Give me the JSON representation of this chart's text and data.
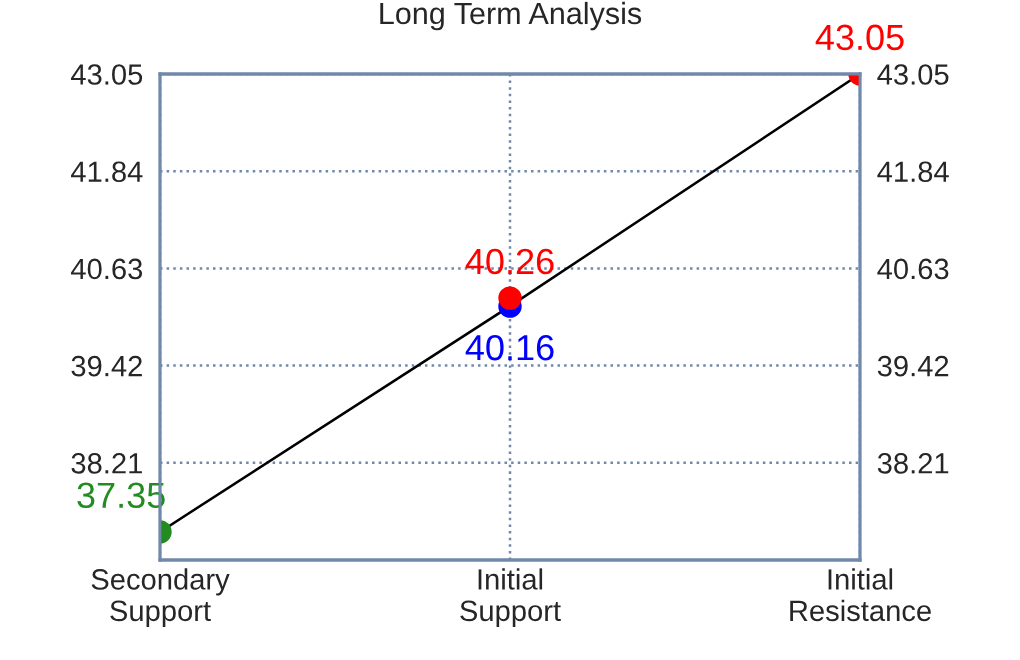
{
  "chart_data": {
    "type": "line",
    "title": "Long Term Analysis",
    "categories": [
      "Secondary\nSupport",
      "Initial\nSupport",
      "Initial\nResistance"
    ],
    "series": [
      {
        "color": "#000000",
        "values": [
          37.35,
          40.16,
          43.05
        ]
      },
      {
        "type": "scatter",
        "color": "#228b22",
        "values": [
          37.35,
          null,
          null
        ],
        "value_labels": [
          "37.35",
          null,
          null
        ],
        "marker": "circle"
      },
      {
        "type": "scatter",
        "color": "#0000ff",
        "values": [
          null,
          40.16,
          null
        ],
        "value_labels": [
          null,
          "40.16",
          null
        ],
        "marker": "circle"
      },
      {
        "type": "scatter",
        "color": "#ff0000",
        "values": [
          null,
          40.26,
          43.05
        ],
        "value_labels": [
          null,
          "40.26",
          "43.05"
        ],
        "marker": "circle"
      }
    ],
    "ylim": [
      37.0,
      43.05
    ],
    "yticks": [
      38.21,
      39.42,
      40.63,
      41.84,
      43.05
    ],
    "y2lim": [
      37.0,
      43.05
    ],
    "y2ticks": [
      38.21,
      39.42,
      40.63,
      41.84,
      43.05
    ],
    "grid": true,
    "legend": false
  }
}
